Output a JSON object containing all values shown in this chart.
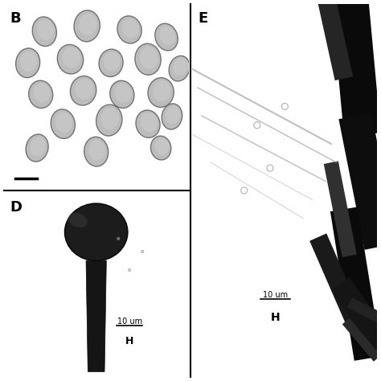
{
  "panels": {
    "B": {
      "label": "B"
    },
    "D": {
      "label": "D"
    },
    "E": {
      "label": "E"
    }
  },
  "scale_bar_text_D": "10 um",
  "scale_bar_label_D": "H",
  "scale_bar_text_E": "10 um",
  "scale_bar_label_E": "H",
  "bg_color_B": "#c0c0c0",
  "bg_color_D": "#cccccc",
  "bg_color_E": "#d0d0d0",
  "label_fontsize": 13,
  "scalebar_fontsize": 7
}
